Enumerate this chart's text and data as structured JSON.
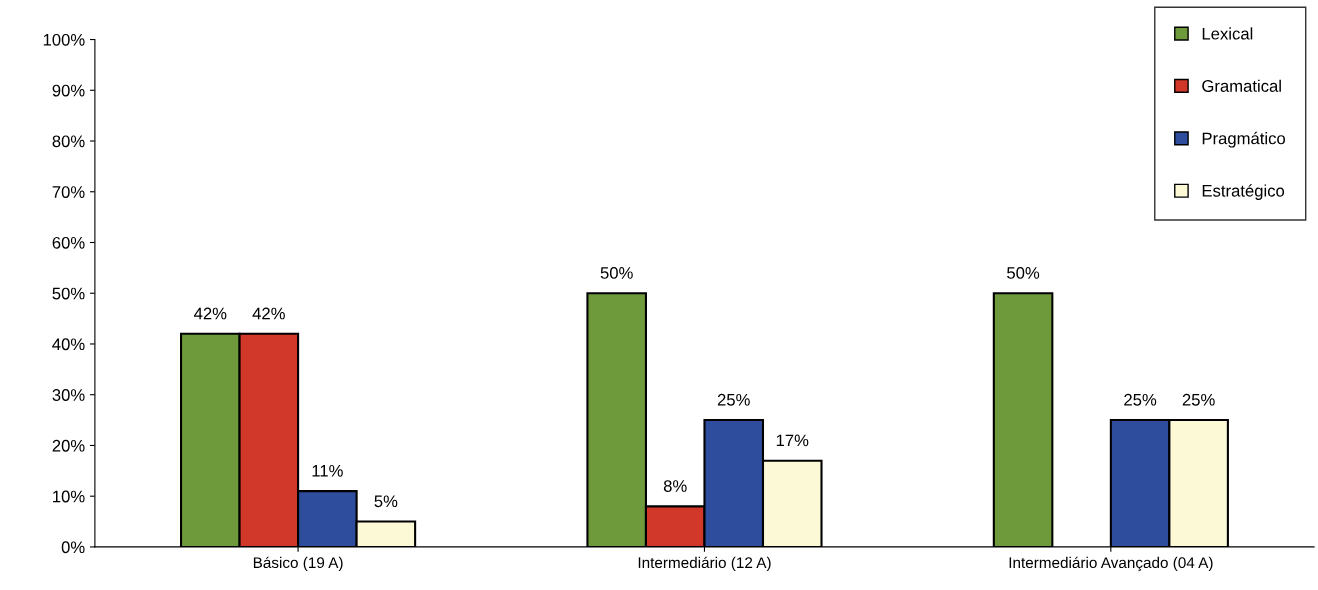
{
  "chart_data": {
    "type": "bar",
    "categories": [
      "Básico (19 A)",
      "Intermediário (12 A)",
      "Intermediário Avançado (04 A)"
    ],
    "series": [
      {
        "name": "Lexical",
        "color": "#6e9a3c",
        "values": [
          42,
          50,
          50
        ],
        "value_labels": [
          "42%",
          "50%",
          "50%"
        ]
      },
      {
        "name": "Gramatical",
        "color": "#d2382a",
        "values": [
          42,
          8,
          null
        ],
        "value_labels": [
          "42%",
          "8%",
          null
        ]
      },
      {
        "name": "Pragmático",
        "color": "#2e4d9c",
        "values": [
          11,
          25,
          25
        ],
        "value_labels": [
          "11%",
          "25%",
          "25%"
        ]
      },
      {
        "name": "Estratégico",
        "color": "#fcf9d6",
        "values": [
          5,
          17,
          25
        ],
        "value_labels": [
          "5%",
          "17%",
          "25%"
        ]
      }
    ],
    "ylim": [
      0,
      100
    ],
    "yticks": [
      {
        "value": 0,
        "label": "0%"
      },
      {
        "value": 10,
        "label": "10%"
      },
      {
        "value": 20,
        "label": "20%"
      },
      {
        "value": 30,
        "label": "30%"
      },
      {
        "value": 40,
        "label": "40%"
      },
      {
        "value": 50,
        "label": "50%"
      },
      {
        "value": 60,
        "label": "60%"
      },
      {
        "value": 70,
        "label": "70%"
      },
      {
        "value": 80,
        "label": "80%"
      },
      {
        "value": 90,
        "label": "90%"
      },
      {
        "value": 100,
        "label": "100%"
      }
    ],
    "legend": "top right",
    "grid": false
  }
}
